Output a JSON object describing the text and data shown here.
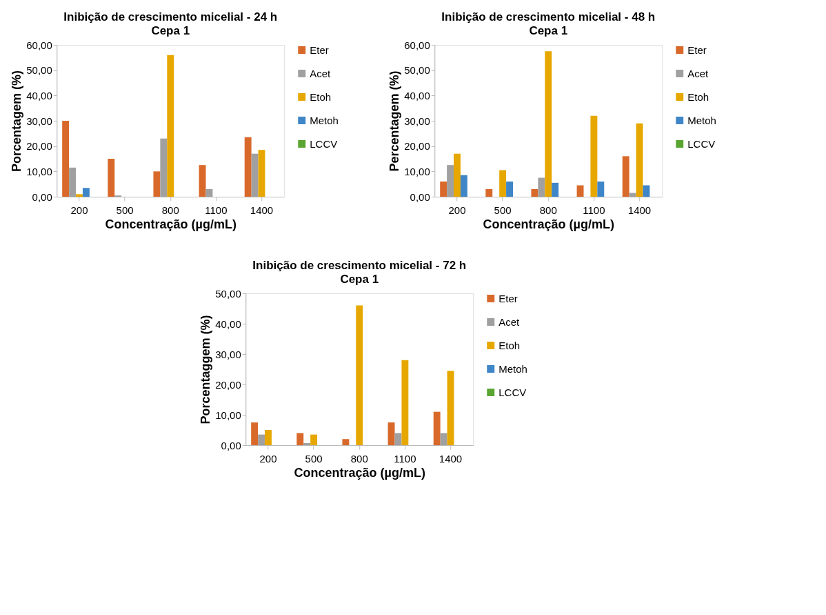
{
  "chart_data": [
    {
      "type": "bar",
      "title": "Inibição de crescimento micelial - 24 h",
      "subtitle": "Cepa 1",
      "xlabel": "Concentração (µg/mL)",
      "ylabel": "Porcentagem (%)",
      "categories": [
        "200",
        "500",
        "800",
        "1100",
        "1400"
      ],
      "series": [
        {
          "name": "Eter",
          "color": "#d9692a",
          "values": [
            30,
            15,
            10,
            12.5,
            23.5
          ]
        },
        {
          "name": "Acet",
          "color": "#a0a0a0",
          "values": [
            11.5,
            0.5,
            23,
            3,
            17
          ]
        },
        {
          "name": "Etoh",
          "color": "#e6a800",
          "values": [
            1,
            0,
            56,
            0,
            18.5
          ]
        },
        {
          "name": "Metoh",
          "color": "#3f86c8",
          "values": [
            3.5,
            0,
            0,
            0,
            0
          ]
        },
        {
          "name": "LCCV",
          "color": "#5aa532",
          "values": [
            0,
            0,
            0,
            0,
            0
          ]
        }
      ],
      "ylim": [
        0,
        60
      ],
      "yticks": [
        {
          "value": 0,
          "label": "0,00"
        },
        {
          "value": 10,
          "label": "10,00"
        },
        {
          "value": 20,
          "label": "20,00"
        },
        {
          "value": 30,
          "label": "30,00"
        },
        {
          "value": 40,
          "label": "40,00"
        },
        {
          "value": 50,
          "label": "50,00"
        },
        {
          "value": 60,
          "label": "60,00"
        }
      ],
      "grid": false,
      "legend": "right"
    },
    {
      "type": "bar",
      "title": "Inibição de crescimento micelial - 48 h",
      "subtitle": "Cepa 1",
      "xlabel": "Concentração (µg/mL)",
      "ylabel": "Percentagem (%)",
      "categories": [
        "200",
        "500",
        "800",
        "1100",
        "1400"
      ],
      "series": [
        {
          "name": "Eter",
          "color": "#d9692a",
          "values": [
            6,
            3,
            3,
            4.5,
            16
          ]
        },
        {
          "name": "Acet",
          "color": "#a0a0a0",
          "values": [
            12.5,
            0,
            7.5,
            0,
            1.5
          ]
        },
        {
          "name": "Etoh",
          "color": "#e6a800",
          "values": [
            17,
            10.5,
            57.5,
            32,
            29
          ]
        },
        {
          "name": "Metoh",
          "color": "#3f86c8",
          "values": [
            8.5,
            6,
            5.5,
            6,
            4.5
          ]
        },
        {
          "name": "LCCV",
          "color": "#5aa532",
          "values": [
            0,
            0,
            0,
            0,
            0
          ]
        }
      ],
      "ylim": [
        0,
        60
      ],
      "yticks": [
        {
          "value": 0,
          "label": "0,00"
        },
        {
          "value": 10,
          "label": "10,00"
        },
        {
          "value": 20,
          "label": "20,00"
        },
        {
          "value": 30,
          "label": "30,00"
        },
        {
          "value": 40,
          "label": "40,00"
        },
        {
          "value": 50,
          "label": "50,00"
        },
        {
          "value": 60,
          "label": "60,00"
        }
      ],
      "grid": false,
      "legend": "right"
    },
    {
      "type": "bar",
      "title": "Inibição de crescimento micelial - 72 h",
      "subtitle": "Cepa 1",
      "xlabel": "Concentração (µg/mL)",
      "ylabel": "Porcentaggem (%)",
      "categories": [
        "200",
        "500",
        "800",
        "1100",
        "1400"
      ],
      "series": [
        {
          "name": "Eter",
          "color": "#d9692a",
          "values": [
            7.5,
            4,
            2,
            7.5,
            11
          ]
        },
        {
          "name": "Acet",
          "color": "#a0a0a0",
          "values": [
            3.5,
            0.7,
            0,
            4,
            4
          ]
        },
        {
          "name": "Etoh",
          "color": "#e6a800",
          "values": [
            5,
            3.5,
            46,
            28,
            24.5
          ]
        },
        {
          "name": "Metoh",
          "color": "#3f86c8",
          "values": [
            0,
            0,
            0,
            0,
            0
          ]
        },
        {
          "name": "LCCV",
          "color": "#5aa532",
          "values": [
            0,
            0,
            0,
            0,
            0
          ]
        }
      ],
      "ylim": [
        0,
        50
      ],
      "yticks": [
        {
          "value": 0,
          "label": "0,00"
        },
        {
          "value": 10,
          "label": "10,00"
        },
        {
          "value": 20,
          "label": "20,00"
        },
        {
          "value": 30,
          "label": "30,00"
        },
        {
          "value": 40,
          "label": "40,00"
        },
        {
          "value": 50,
          "label": "50,00"
        }
      ],
      "grid": false,
      "legend": "right"
    }
  ]
}
